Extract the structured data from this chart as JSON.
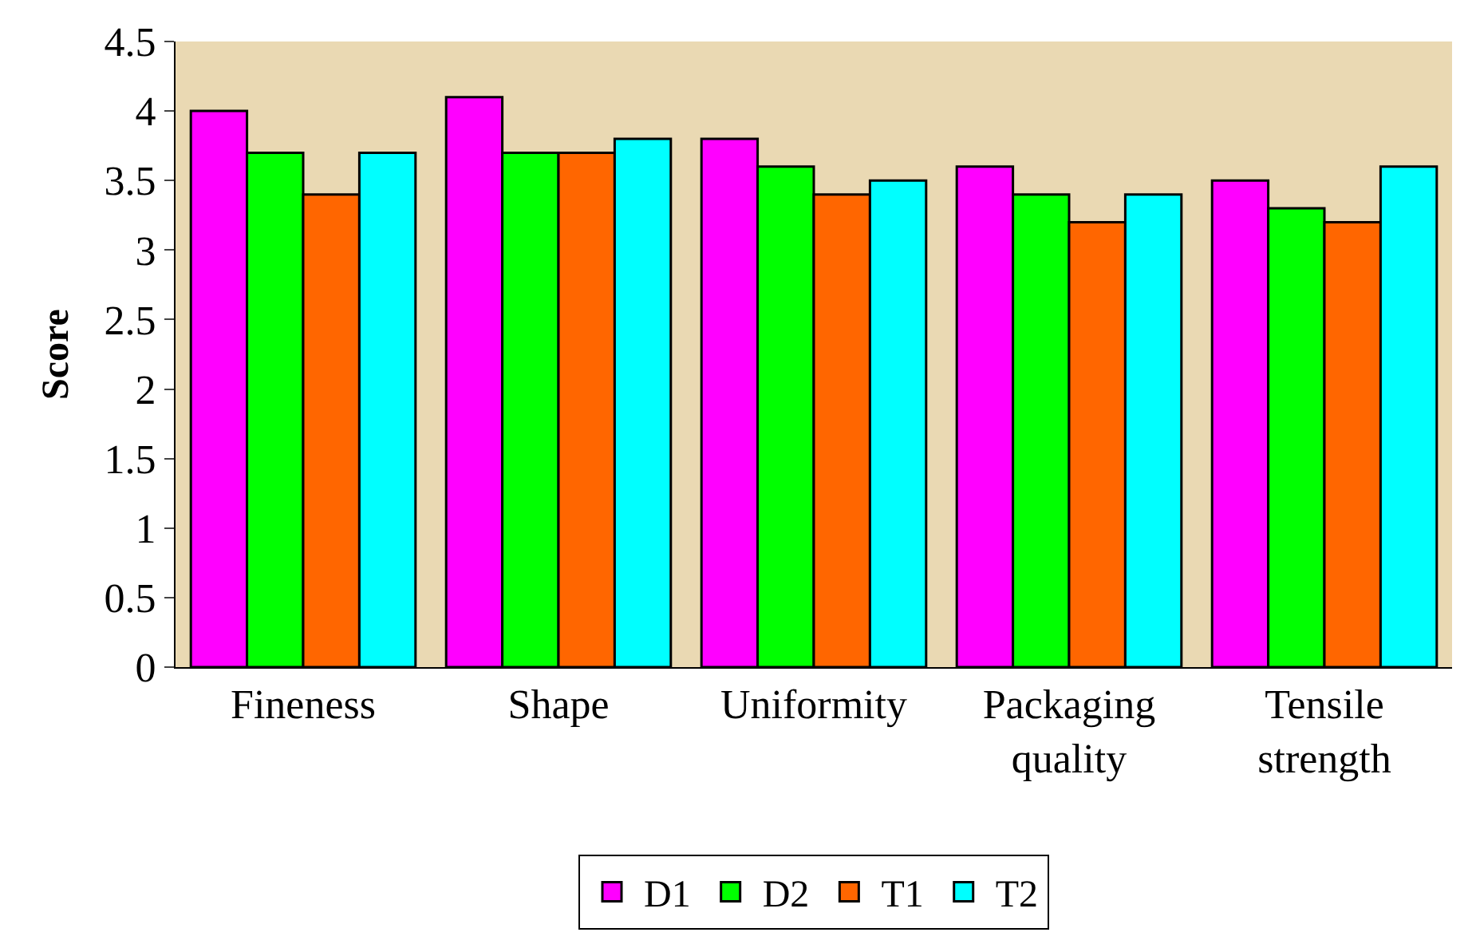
{
  "chart_data": {
    "type": "bar",
    "ylabel": "Score",
    "categories": [
      "Fineness",
      "Shape",
      "Uniformity",
      "Packaging quality",
      "Tensile strength"
    ],
    "series": [
      {
        "name": "D1",
        "color": "#ff00ff",
        "values": [
          4.0,
          4.1,
          3.8,
          3.6,
          3.5
        ]
      },
      {
        "name": "D2",
        "color": "#00ff00",
        "values": [
          3.7,
          3.7,
          3.6,
          3.4,
          3.3
        ]
      },
      {
        "name": "T1",
        "color": "#ff6600",
        "values": [
          3.4,
          3.7,
          3.4,
          3.2,
          3.2
        ]
      },
      {
        "name": "T2",
        "color": "#00ffff",
        "values": [
          3.7,
          3.8,
          3.5,
          3.4,
          3.6
        ]
      }
    ],
    "ylim": [
      0,
      4.5
    ],
    "yticks": [
      0,
      0.5,
      1,
      1.5,
      2,
      2.5,
      3,
      3.5,
      4,
      4.5
    ],
    "grid": false,
    "legend": "bottom"
  }
}
